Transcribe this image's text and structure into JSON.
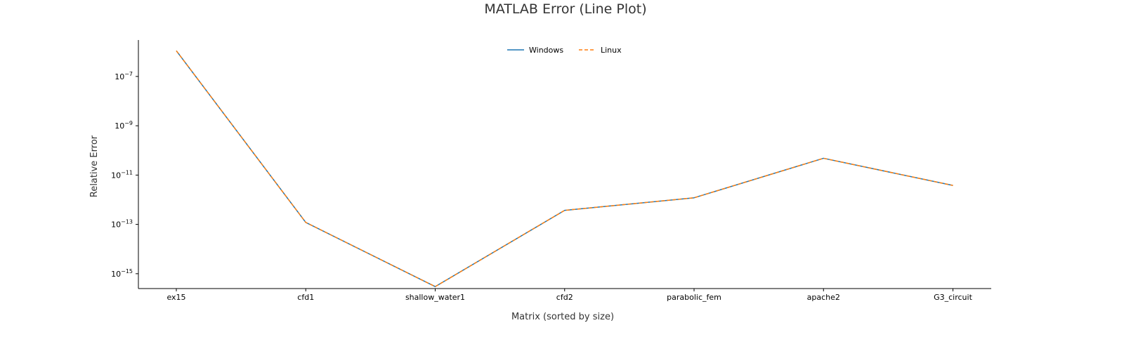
{
  "chart_data": {
    "type": "line",
    "title": "MATLAB Error (Line Plot)",
    "xlabel": "Matrix (sorted by size)",
    "ylabel": "Relative Error",
    "yscale": "log",
    "ylim": [
      2.5e-16,
      3e-06
    ],
    "y_ticks": [
      {
        "base": "10",
        "exp": "−7",
        "value": 1e-07
      },
      {
        "base": "10",
        "exp": "−9",
        "value": 1e-09
      },
      {
        "base": "10",
        "exp": "−11",
        "value": 1e-11
      },
      {
        "base": "10",
        "exp": "−13",
        "value": 1e-13
      },
      {
        "base": "10",
        "exp": "−15",
        "value": 1e-15
      }
    ],
    "categories": [
      "ex15",
      "cfd1",
      "shallow_water1",
      "cfd2",
      "parabolic_fem",
      "apache2",
      "G3_circuit"
    ],
    "series": [
      {
        "name": "Windows",
        "values": [
          1.1e-06,
          1.2e-13,
          3e-16,
          3.7e-13,
          1.2e-12,
          4.8e-11,
          3.8e-12
        ]
      },
      {
        "name": "Linux",
        "values": [
          1.1e-06,
          1.2e-13,
          3e-16,
          3.7e-13,
          1.2e-12,
          4.8e-11,
          3.8e-12
        ]
      }
    ],
    "legend": "top-center",
    "grid": false,
    "colors": {
      "Windows": "#1f77b4",
      "Linux": "#ff7f0e"
    }
  }
}
